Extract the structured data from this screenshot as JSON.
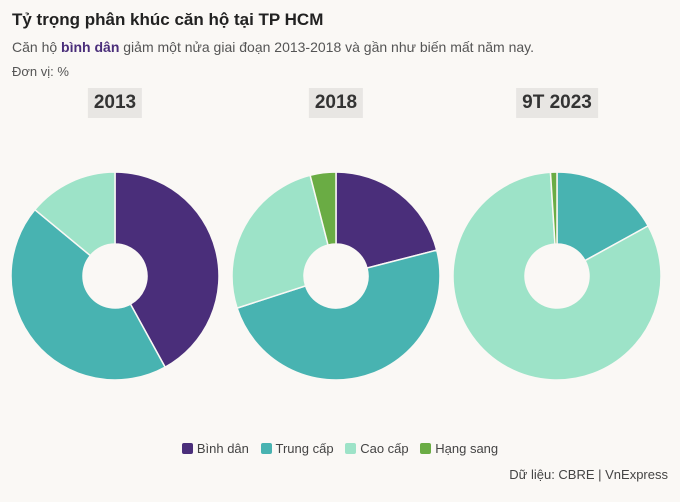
{
  "title": "Tỷ trọng phân khúc căn hộ tại TP HCM",
  "subtitle": {
    "pre": "Căn hộ ",
    "bold": "bình dân",
    "post": " giảm một nửa giai đoạn 2013-2018 và gần như biến mất năm nay."
  },
  "unit": "Đơn vị: %",
  "source": "Dữ liệu: CBRE | VnExpress",
  "chart_data": {
    "type": "pie",
    "title": "Tỷ trọng phân khúc căn hộ tại TP HCM",
    "categories": [
      "Bình dân",
      "Trung cấp",
      "Cao cấp",
      "Hạng sang"
    ],
    "colors": [
      "#4a2e7a",
      "#48b3b1",
      "#9de3c8",
      "#6aac44"
    ],
    "legend_position": "bottom",
    "charts": [
      {
        "label": "2013",
        "values": [
          42,
          44,
          14,
          0
        ]
      },
      {
        "label": "2018",
        "values": [
          21,
          49,
          26,
          4
        ]
      },
      {
        "label": "9T 2023",
        "values": [
          0,
          17,
          82,
          1
        ]
      }
    ]
  }
}
